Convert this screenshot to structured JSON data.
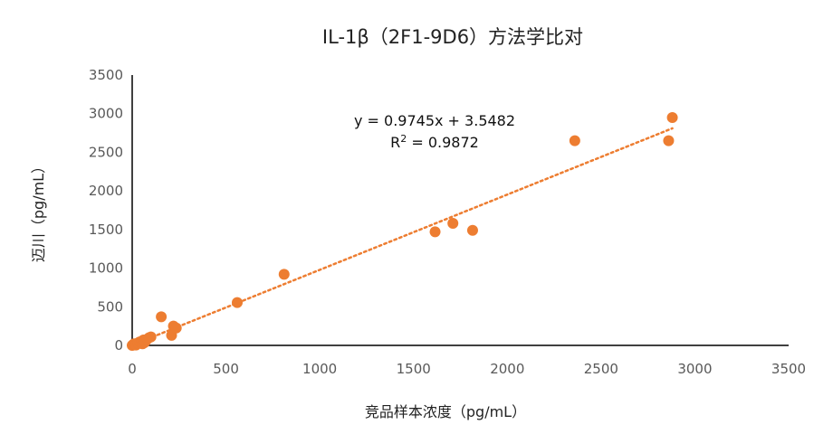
{
  "chart_data": {
    "type": "scatter",
    "title": "IL-1β（2F1-9D6）方法学比对",
    "xlabel": "竞品样本浓度（pg/mL）",
    "ylabel": "迈川（pg/mL）",
    "xlim": [
      0,
      3500
    ],
    "ylim": [
      0,
      3500
    ],
    "xticks": [
      0,
      500,
      1000,
      1500,
      2000,
      2500,
      3000,
      3500
    ],
    "yticks": [
      0,
      500,
      1000,
      1500,
      2000,
      2500,
      3000,
      3500
    ],
    "grid": false,
    "legend": "none",
    "marker_color": "#ED7D31",
    "trendline": {
      "type": "linear",
      "slope": 0.9745,
      "intercept": 3.5482,
      "x_range": [
        0,
        2880
      ],
      "equation_label": "y = 0.9745x + 3.5482",
      "r2_prefix": "R",
      "r2_exponent": "2",
      "r2_value": " = 0.9872",
      "color": "#ED7D31",
      "style": "dotted"
    },
    "series": [
      {
        "x": [
          0,
          5,
          10,
          15,
          20,
          30,
          40,
          50,
          55,
          60,
          65,
          70,
          80,
          90,
          100,
          155,
          210,
          220,
          235,
          560,
          810,
          1615,
          1710,
          1815,
          2360,
          2860,
          2880
        ],
        "y": [
          0,
          10,
          20,
          15,
          5,
          30,
          45,
          40,
          20,
          70,
          35,
          50,
          80,
          100,
          110,
          370,
          130,
          250,
          225,
          555,
          920,
          1470,
          1580,
          1490,
          2650,
          2650,
          2950
        ]
      }
    ]
  }
}
